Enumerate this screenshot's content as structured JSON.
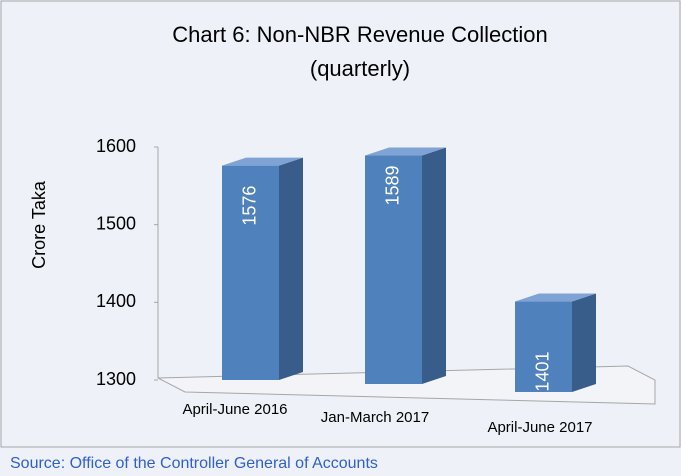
{
  "chart_data": {
    "type": "bar3d",
    "title": "Chart 6: Non-NBR Revenue Collection",
    "subtitle": "(quarterly)",
    "y_label": "Crore Taka",
    "categories": [
      "April-June 2016",
      "Jan-March 2017",
      "April-June 2017"
    ],
    "values": [
      1576,
      1589,
      1401
    ],
    "color": "#4f81bd",
    "ylim": [
      1300,
      1600
    ],
    "yticks": [
      1300,
      1400,
      1500,
      1600
    ],
    "source": "Source: Office of the Controller General of Accounts"
  }
}
